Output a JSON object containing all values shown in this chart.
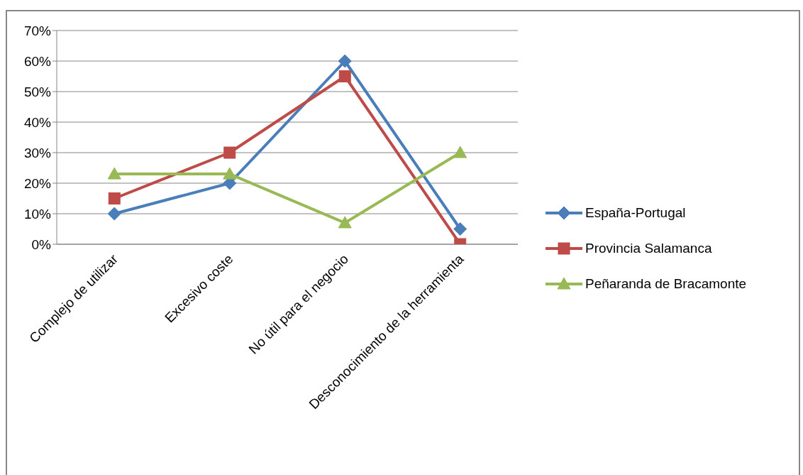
{
  "chart_data": {
    "type": "line",
    "categories": [
      "Complejo de utilizar",
      "Excesivo coste",
      "No útil para el negocio",
      "Desconocimiento de la herramienta"
    ],
    "series": [
      {
        "name": "España-Portugal",
        "color": "#4a7ebb",
        "marker": "diamond",
        "values": [
          10,
          20,
          60,
          5
        ]
      },
      {
        "name": "Provincia Salamanca",
        "color": "#be4b48",
        "marker": "square",
        "values": [
          15,
          30,
          55,
          0
        ]
      },
      {
        "name": "Peñaranda de Bracamonte",
        "color": "#98b954",
        "marker": "triangle",
        "values": [
          23,
          23,
          7,
          30
        ]
      }
    ],
    "ylim": [
      0,
      70
    ],
    "yticks": [
      {
        "value": 0,
        "label": "0%"
      },
      {
        "value": 10,
        "label": "10%"
      },
      {
        "value": 20,
        "label": "20%"
      },
      {
        "value": 30,
        "label": "30%"
      },
      {
        "value": 40,
        "label": "40%"
      },
      {
        "value": 50,
        "label": "50%"
      },
      {
        "value": 60,
        "label": "60%"
      },
      {
        "value": 70,
        "label": "70%"
      }
    ],
    "grid": "y",
    "legend": "right"
  }
}
